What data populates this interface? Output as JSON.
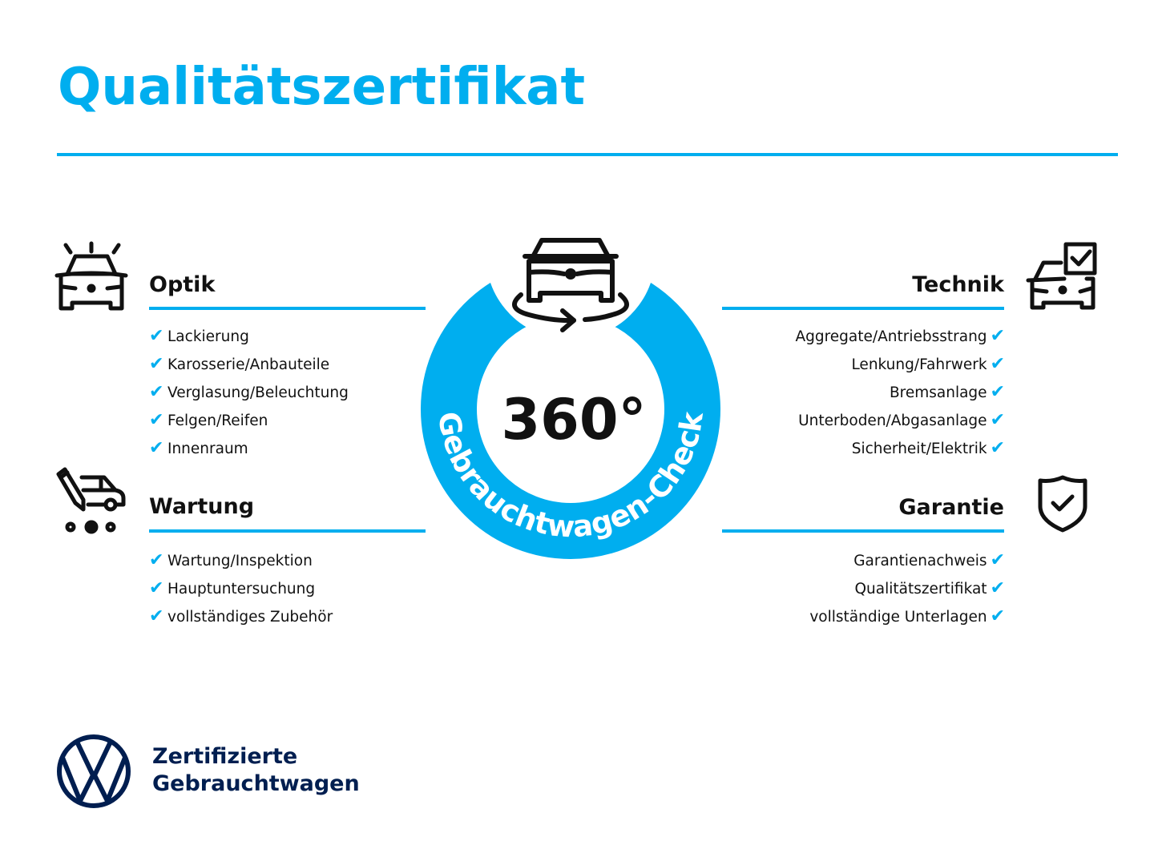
{
  "title": "Qualitätszertifikat",
  "colors": {
    "accent": "#00aeef",
    "brand_navy": "#001e50",
    "text": "#111111"
  },
  "center": {
    "big_text": "360°",
    "ring_text": "Gebrauchtwagen-Check",
    "icon": "car-rotate-360-icon"
  },
  "sections": {
    "optik": {
      "heading": "Optik",
      "icon": "car-shine-icon",
      "items": [
        "Lackierung",
        "Karosserie/Anbauteile",
        "Verglasung/Beleuchtung",
        "Felgen/Reifen",
        "Innenraum"
      ]
    },
    "wartung": {
      "heading": "Wartung",
      "icon": "service-van-pencil-icon",
      "items": [
        "Wartung/Inspektion",
        "Hauptuntersuchung",
        "vollständiges Zubehör"
      ]
    },
    "technik": {
      "heading": "Technik",
      "icon": "car-checklist-icon",
      "items": [
        "Aggregate/Antriebsstrang",
        "Lenkung/Fahrwerk",
        "Bremsanlage",
        "Unterboden/Abgasanlage",
        "Sicherheit/Elektrik"
      ]
    },
    "garantie": {
      "heading": "Garantie",
      "icon": "shield-check-icon",
      "items": [
        "Garantienachweis",
        "Qualitätszertifikat",
        "vollständige Unterlagen"
      ]
    }
  },
  "check_glyph": "✔",
  "footer": {
    "line1": "Zertifizierte",
    "line2": "Gebrauchtwagen",
    "logo": "VW"
  }
}
